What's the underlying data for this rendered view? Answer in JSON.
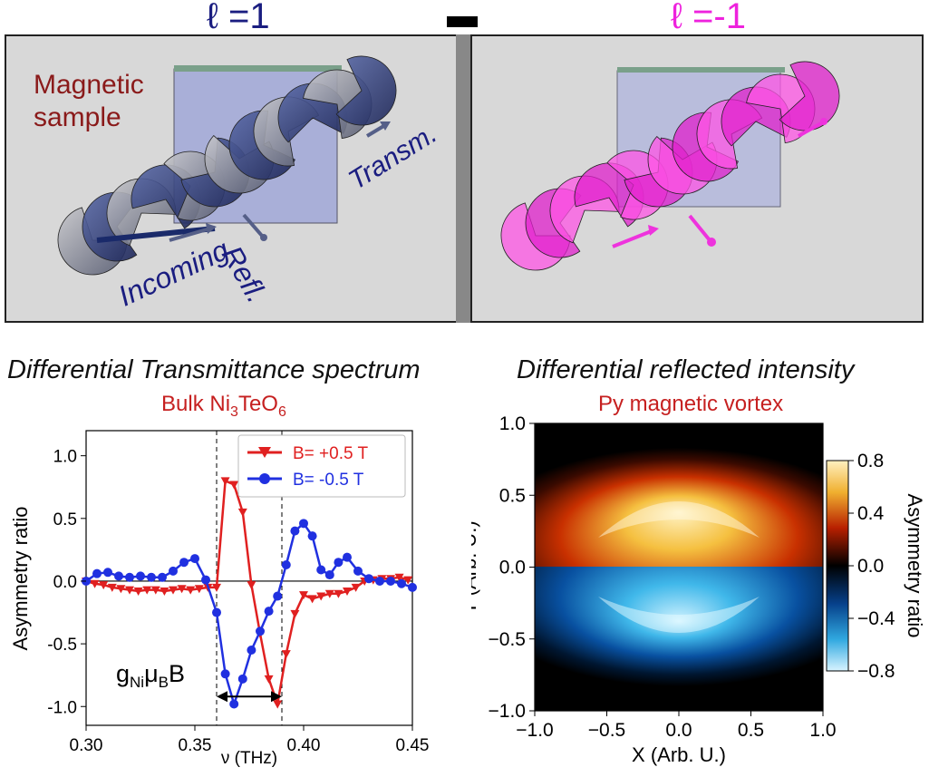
{
  "header": {
    "left_label": "ℓ =1",
    "right_label": "ℓ =-1"
  },
  "illustration": {
    "sample_label_line1": "Magnetic",
    "sample_label_line2": "sample",
    "incoming_label": "Incoming",
    "reflected_label": "Refl.",
    "transmitted_label": "Transm."
  },
  "colors": {
    "left_beam": "#2a3580",
    "right_beam": "#ff33dd",
    "curve_plus": "#e02020",
    "curve_minus": "#2030e0"
  },
  "chart_data": [
    {
      "type": "line",
      "title": "Differential Transmittance spectrum",
      "subtitle": {
        "main": "Bulk Ni",
        "sub1": "3",
        "mid": "TeO",
        "sub2": "6"
      },
      "xlabel": "ν (THz)",
      "ylabel": "Asymmetry ratio",
      "xlim": [
        0.3,
        0.45
      ],
      "ylim": [
        -1.15,
        1.2
      ],
      "xticks": [
        "0.30",
        "0.35",
        "0.40",
        "0.45"
      ],
      "xtick_values": [
        0.3,
        0.35,
        0.4,
        0.45
      ],
      "yticks": [
        "1.0",
        "0.5",
        "0.0",
        "-0.5",
        "-1.0"
      ],
      "ytick_values": [
        1.0,
        0.5,
        0.0,
        -0.5,
        -1.0
      ],
      "vlines": [
        0.36,
        0.39
      ],
      "annotation": {
        "main": "g",
        "sub1": "Ni",
        "mid": "μ",
        "sub2": "B",
        "end": "B"
      },
      "legend_position": "top-right",
      "series": [
        {
          "name": "B= +0.5 T",
          "color": "#e02020",
          "marker": "triangle-down",
          "x": [
            0.3,
            0.304,
            0.308,
            0.312,
            0.316,
            0.32,
            0.324,
            0.328,
            0.332,
            0.336,
            0.34,
            0.344,
            0.348,
            0.352,
            0.356,
            0.36,
            0.364,
            0.368,
            0.372,
            0.376,
            0.38,
            0.384,
            0.388,
            0.392,
            0.396,
            0.4,
            0.404,
            0.408,
            0.412,
            0.416,
            0.42,
            0.424,
            0.428,
            0.432,
            0.436,
            0.44,
            0.444,
            0.448
          ],
          "y": [
            0.0,
            -0.02,
            -0.03,
            -0.05,
            -0.06,
            -0.07,
            -0.08,
            -0.07,
            -0.07,
            -0.08,
            -0.07,
            -0.06,
            -0.07,
            -0.06,
            -0.05,
            -0.05,
            0.8,
            0.77,
            0.55,
            -0.03,
            -0.42,
            -0.78,
            -0.98,
            -0.58,
            -0.26,
            -0.11,
            -0.14,
            -0.12,
            -0.1,
            -0.1,
            -0.08,
            -0.05,
            0.0,
            0.01,
            0.02,
            0.02,
            0.03,
            0.01
          ]
        },
        {
          "name": "B= -0.5 T",
          "color": "#2030e0",
          "marker": "circle",
          "x": [
            0.3,
            0.305,
            0.31,
            0.315,
            0.32,
            0.325,
            0.33,
            0.335,
            0.34,
            0.345,
            0.35,
            0.355,
            0.36,
            0.364,
            0.368,
            0.372,
            0.376,
            0.38,
            0.384,
            0.388,
            0.392,
            0.396,
            0.4,
            0.404,
            0.408,
            0.412,
            0.416,
            0.42,
            0.425,
            0.43,
            0.435,
            0.44,
            0.445,
            0.45
          ],
          "y": [
            0.0,
            0.06,
            0.07,
            0.04,
            0.03,
            0.04,
            0.03,
            0.03,
            0.08,
            0.15,
            0.18,
            0.01,
            -0.25,
            -0.74,
            -0.98,
            -0.78,
            -0.55,
            -0.4,
            -0.24,
            -0.12,
            0.13,
            0.4,
            0.46,
            0.36,
            0.09,
            0.05,
            0.15,
            0.19,
            0.08,
            0.02,
            0.0,
            0.0,
            -0.02,
            -0.05
          ]
        }
      ]
    },
    {
      "type": "heatmap",
      "title": "Differential reflected intensity",
      "subtitle": "Py magnetic vortex",
      "xlabel": "X (Arb. U.)",
      "ylabel": "Y (Arb. U.)",
      "xlim": [
        -1.0,
        1.0
      ],
      "ylim": [
        -1.0,
        1.0
      ],
      "xticks": [
        "−1.0",
        "−0.5",
        "0.0",
        "0.5",
        "1.0"
      ],
      "xtick_values": [
        -1.0,
        -0.5,
        0.0,
        0.5,
        1.0
      ],
      "yticks": [
        "1.0",
        "0.5",
        "0.0",
        "−0.5",
        "−1.0"
      ],
      "ytick_values": [
        1.0,
        0.5,
        0.0,
        -0.5,
        -1.0
      ],
      "colorbar": {
        "label": "Asymmetry ratio",
        "range": [
          -0.8,
          0.8
        ],
        "ticks": [
          "0.8",
          "0.4",
          "0.0",
          "−0.4",
          "−0.8"
        ],
        "tick_values": [
          0.8,
          0.4,
          0.0,
          -0.4,
          -0.8
        ]
      },
      "description_values": {
        "max": 0.8,
        "min": -0.8,
        "peak_y": 0.3,
        "trough_y": -0.3
      }
    }
  ]
}
